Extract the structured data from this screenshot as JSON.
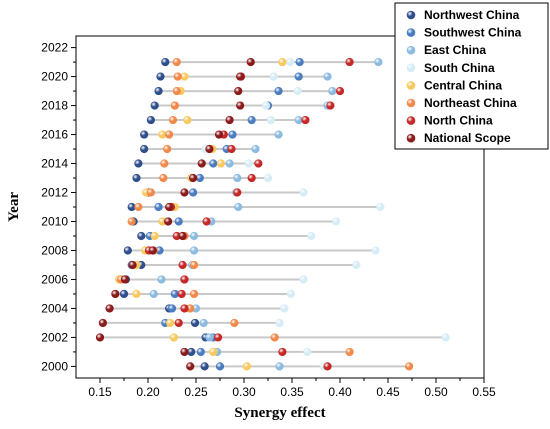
{
  "chart_data": {
    "type": "scatter",
    "subtype": "dumbbell",
    "xlabel": "Synergy effect",
    "ylabel": "Year",
    "xlim": [
      0.125,
      0.55
    ],
    "ylim": [
      1999.2,
      2022.8
    ],
    "xticks": [
      "0.15",
      "0.20",
      "0.25",
      "0.30",
      "0.35",
      "0.40",
      "0.45",
      "0.50",
      "0.55"
    ],
    "xtick_values": [
      0.15,
      0.2,
      0.25,
      0.3,
      0.35,
      0.4,
      0.45,
      0.5,
      0.55
    ],
    "yticks": [
      "2000",
      "2002",
      "2004",
      "2006",
      "2008",
      "2010",
      "2012",
      "2014",
      "2016",
      "2018",
      "2020",
      "2022"
    ],
    "ytick_values": [
      2000,
      2002,
      2004,
      2006,
      2008,
      2010,
      2012,
      2014,
      2016,
      2018,
      2020,
      2022
    ],
    "grid": false,
    "legend_position": "top-right",
    "years": [
      2000,
      2001,
      2002,
      2003,
      2004,
      2005,
      2006,
      2007,
      2008,
      2009,
      2010,
      2011,
      2012,
      2013,
      2014,
      2015,
      2016,
      2017,
      2018,
      2019,
      2020,
      2021
    ],
    "series": [
      {
        "name": "Northwest China",
        "color": "#2E4E8C",
        "values": [
          0.259,
          0.245,
          0.26,
          0.249,
          0.222,
          0.175,
          0.177,
          0.193,
          0.179,
          0.193,
          0.185,
          0.183,
          0.2,
          0.188,
          0.19,
          0.196,
          0.196,
          0.203,
          0.207,
          0.211,
          0.213,
          0.218
        ]
      },
      {
        "name": "Southwest China",
        "color": "#4A7CC0",
        "values": [
          0.275,
          0.255,
          0.268,
          0.218,
          0.225,
          0.228,
          0.238,
          0.183,
          0.212,
          0.202,
          0.232,
          0.211,
          0.247,
          0.254,
          0.268,
          0.282,
          0.288,
          0.308,
          0.325,
          0.336,
          0.357,
          0.358
        ]
      },
      {
        "name": "East China",
        "color": "#8CBBE0",
        "values": [
          0.337,
          0.272,
          0.264,
          0.258,
          0.25,
          0.206,
          0.214,
          0.246,
          0.248,
          0.248,
          0.266,
          0.294,
          0.292,
          0.293,
          0.285,
          0.312,
          0.336,
          0.357,
          0.387,
          0.392,
          0.387,
          0.44
        ]
      },
      {
        "name": "South China",
        "color": "#D6ECF6",
        "values": [
          0.383,
          0.366,
          0.51,
          0.337,
          0.342,
          0.349,
          0.362,
          0.417,
          0.437,
          0.37,
          0.396,
          0.442,
          0.362,
          0.325,
          0.305,
          0.26,
          0.277,
          0.328,
          0.323,
          0.356,
          0.331,
          0.348
        ]
      },
      {
        "name": "Central China",
        "color": "#F8C95E",
        "values": [
          0.303,
          0.268,
          0.227,
          0.223,
          0.243,
          0.188,
          0.17,
          0.188,
          0.197,
          0.207,
          0.215,
          0.228,
          0.198,
          0.245,
          0.276,
          0.267,
          0.215,
          0.241,
          0.228,
          0.234,
          0.238,
          0.34
        ]
      },
      {
        "name": "Northeast China",
        "color": "#F0894A",
        "values": [
          0.472,
          0.41,
          0.332,
          0.29,
          0.244,
          0.248,
          0.172,
          0.248,
          0.206,
          0.238,
          0.183,
          0.19,
          0.203,
          0.216,
          0.217,
          0.22,
          0.222,
          0.226,
          0.228,
          0.23,
          0.231,
          0.23
        ]
      },
      {
        "name": "North China",
        "color": "#C62828",
        "values": [
          0.387,
          0.34,
          0.273,
          0.232,
          0.238,
          0.235,
          0.238,
          0.236,
          0.201,
          0.23,
          0.261,
          0.224,
          0.293,
          0.308,
          0.315,
          0.287,
          0.279,
          0.364,
          0.39,
          0.4,
          0.297,
          0.41
        ]
      },
      {
        "name": "National Scope",
        "color": "#8B1A1A",
        "values": [
          0.244,
          0.238,
          0.15,
          0.153,
          0.16,
          0.166,
          0.176,
          0.184,
          0.205,
          0.236,
          0.221,
          0.222,
          0.238,
          0.247,
          0.256,
          0.264,
          0.274,
          0.285,
          0.296,
          0.294,
          0.296,
          0.307
        ]
      }
    ]
  }
}
